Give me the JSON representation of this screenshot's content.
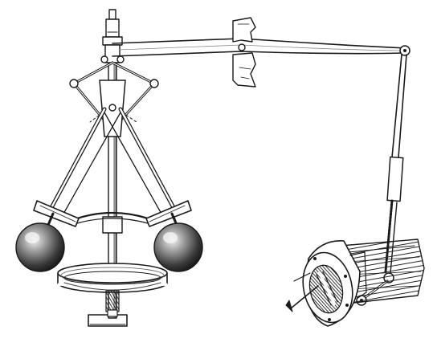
{
  "figure": {
    "subject": "centrifugal-governor-engraving",
    "ink_color": "#1a1a1a",
    "paper_color": "#ffffff",
    "ball_shade_dark": "#2b2b2b",
    "ball_highlight": "#f2f2f2"
  }
}
